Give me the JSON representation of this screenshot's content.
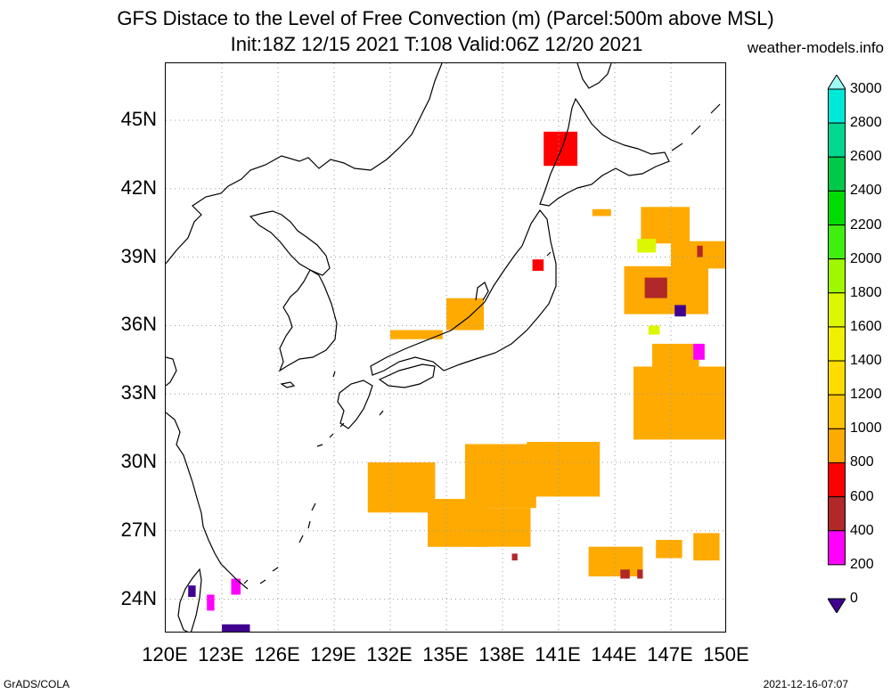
{
  "title_line1": "GFS Distace to the Level of Free Convection (m) (Parcel:500m above MSL)",
  "title_line2": "Init:18Z 12/15 2021 T:108 Valid:06Z 12/20 2021",
  "site": "weather-models.info",
  "footer_left": "GrADS/COLA",
  "footer_right": "2021-12-16-07:07",
  "lat_labels": [
    "45N",
    "42N",
    "39N",
    "36N",
    "33N",
    "30N",
    "27N",
    "24N"
  ],
  "lon_labels": [
    "120E",
    "123E",
    "126E",
    "129E",
    "132E",
    "135E",
    "138E",
    "141E",
    "144E",
    "147E",
    "150E"
  ],
  "colorbar": {
    "labels": [
      "3000",
      "2800",
      "2600",
      "2400",
      "2200",
      "2000",
      "1800",
      "1600",
      "1400",
      "1200",
      "1000",
      "800",
      "600",
      "400",
      "200",
      "0"
    ],
    "colors": [
      "#a0fff8",
      "#00e8d8",
      "#00d890",
      "#00c848",
      "#00dc00",
      "#40ee10",
      "#a0f800",
      "#dcf800",
      "#f0f000",
      "#ffdc00",
      "#ffc400",
      "#ffaa00",
      "#ff0000",
      "#b02828",
      "#ff00ff",
      "#400090"
    ]
  },
  "chart_data": {
    "type": "heatmap",
    "lon_range": [
      120,
      150
    ],
    "lat_range": [
      22.5,
      47.5
    ],
    "units": "m",
    "regions": [
      {
        "lon": [
          130.8,
          134.4
        ],
        "lat": [
          27.8,
          30.0
        ],
        "level": 900
      },
      {
        "lon": [
          134.0,
          137.2
        ],
        "lat": [
          26.3,
          28.4
        ],
        "level": 900
      },
      {
        "lon": [
          136.0,
          139.8
        ],
        "lat": [
          28.0,
          30.8
        ],
        "level": 900
      },
      {
        "lon": [
          139.3,
          143.2
        ],
        "lat": [
          28.5,
          30.9
        ],
        "level": 950
      },
      {
        "lon": [
          136.5,
          139.5
        ],
        "lat": [
          26.3,
          28.0
        ],
        "level": 900
      },
      {
        "lon": [
          142.6,
          145.5
        ],
        "lat": [
          25.0,
          26.3
        ],
        "level": 900
      },
      {
        "lon": [
          146.2,
          147.6
        ],
        "lat": [
          25.8,
          26.6
        ],
        "level": 850
      },
      {
        "lon": [
          148.2,
          149.6
        ],
        "lat": [
          25.7,
          26.9
        ],
        "level": 850
      },
      {
        "lon": [
          145.0,
          150.0
        ],
        "lat": [
          31.0,
          34.2
        ],
        "level": 950
      },
      {
        "lon": [
          146.0,
          148.5
        ],
        "lat": [
          34.0,
          35.2
        ],
        "level": 900
      },
      {
        "lon": [
          144.5,
          149.0
        ],
        "lat": [
          36.5,
          38.6
        ],
        "level": 850
      },
      {
        "lon": [
          145.4,
          148.0
        ],
        "lat": [
          39.6,
          41.2
        ],
        "level": 900
      },
      {
        "lon": [
          147.0,
          150.0
        ],
        "lat": [
          38.5,
          39.7
        ],
        "level": 900
      },
      {
        "lon": [
          135.0,
          137.0
        ],
        "lat": [
          35.8,
          37.2
        ],
        "level": 900
      },
      {
        "lon": [
          132.0,
          134.8
        ],
        "lat": [
          35.4,
          35.8
        ],
        "level": 900
      },
      {
        "lon": [
          145.6,
          146.8
        ],
        "lat": [
          37.2,
          38.1
        ],
        "level": 550
      },
      {
        "lon": [
          147.2,
          147.8
        ],
        "lat": [
          36.4,
          36.9
        ],
        "level": 150
      },
      {
        "lon": [
          148.2,
          148.8
        ],
        "lat": [
          34.5,
          35.2
        ],
        "level": 350
      },
      {
        "lon": [
          138.5,
          138.8
        ],
        "lat": [
          25.7,
          26.0
        ],
        "level": 550
      },
      {
        "lon": [
          144.3,
          144.8
        ],
        "lat": [
          24.9,
          25.3
        ],
        "level": 550
      },
      {
        "lon": [
          145.2,
          145.5
        ],
        "lat": [
          24.9,
          25.3
        ],
        "level": 550
      },
      {
        "lon": [
          148.4,
          148.7
        ],
        "lat": [
          39.0,
          39.5
        ],
        "level": 550
      },
      {
        "lon": [
          145.2,
          146.2
        ],
        "lat": [
          39.2,
          39.8
        ],
        "level": 1600
      },
      {
        "lon": [
          145.8,
          146.4
        ],
        "lat": [
          35.6,
          36.0
        ],
        "level": 1600
      },
      {
        "lon": [
          140.2,
          142.0
        ],
        "lat": [
          43.0,
          44.5
        ],
        "level": 600
      },
      {
        "lon": [
          139.6,
          140.2
        ],
        "lat": [
          38.4,
          38.9
        ],
        "level": 700
      },
      {
        "lon": [
          142.8,
          143.8
        ],
        "lat": [
          40.8,
          41.1
        ],
        "level": 900
      },
      {
        "lon": [
          121.2,
          121.6
        ],
        "lat": [
          24.1,
          24.6
        ],
        "level": 150
      },
      {
        "lon": [
          122.2,
          122.6
        ],
        "lat": [
          23.5,
          24.2
        ],
        "level": 300
      },
      {
        "lon": [
          123.5,
          124.0
        ],
        "lat": [
          24.2,
          24.9
        ],
        "level": 350
      },
      {
        "lon": [
          123.0,
          124.5
        ],
        "lat": [
          22.5,
          22.9
        ],
        "level": 150
      }
    ]
  }
}
